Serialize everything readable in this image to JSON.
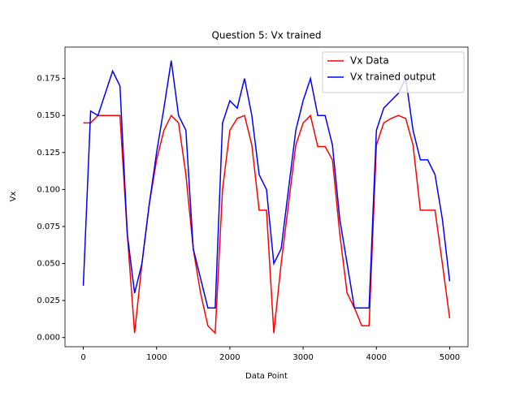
{
  "chart_data": {
    "type": "line",
    "title": "Question 5: Vx trained",
    "x_label": "Data Point",
    "y_label": "Vx",
    "x": [
      0,
      100,
      200,
      300,
      400,
      500,
      600,
      700,
      800,
      900,
      1000,
      1100,
      1200,
      1300,
      1400,
      1500,
      1600,
      1700,
      1800,
      1900,
      2000,
      2100,
      2200,
      2300,
      2400,
      2500,
      2600,
      2700,
      2800,
      2900,
      3000,
      3100,
      3200,
      3300,
      3400,
      3500,
      3600,
      3700,
      3800,
      3900,
      4000,
      4100,
      4200,
      4300,
      4400,
      4500,
      4600,
      4700,
      4800,
      4900,
      5000
    ],
    "series": [
      {
        "name": "Vx Data",
        "color": "#ff0000",
        "values": [
          0.145,
          0.145,
          0.15,
          0.15,
          0.15,
          0.15,
          0.07,
          0.003,
          0.05,
          0.09,
          0.12,
          0.14,
          0.15,
          0.145,
          0.11,
          0.06,
          0.03,
          0.008,
          0.003,
          0.1,
          0.14,
          0.148,
          0.15,
          0.13,
          0.086,
          0.086,
          0.003,
          0.05,
          0.09,
          0.13,
          0.145,
          0.15,
          0.129,
          0.129,
          0.12,
          0.07,
          0.03,
          0.02,
          0.008,
          0.008,
          0.13,
          0.145,
          0.148,
          0.15,
          0.148,
          0.13,
          0.086,
          0.086,
          0.086,
          0.05,
          0.013
        ]
      },
      {
        "name": "Vx trained output",
        "color": "#0000ff",
        "values": [
          0.035,
          0.153,
          0.15,
          0.165,
          0.18,
          0.17,
          0.07,
          0.03,
          0.05,
          0.09,
          0.125,
          0.155,
          0.187,
          0.15,
          0.14,
          0.06,
          0.04,
          0.02,
          0.02,
          0.145,
          0.16,
          0.155,
          0.175,
          0.15,
          0.11,
          0.1,
          0.05,
          0.06,
          0.1,
          0.14,
          0.16,
          0.175,
          0.15,
          0.15,
          0.13,
          0.08,
          0.05,
          0.02,
          0.02,
          0.02,
          0.14,
          0.155,
          0.16,
          0.165,
          0.175,
          0.14,
          0.12,
          0.12,
          0.11,
          0.08,
          0.038
        ]
      }
    ],
    "xlim": [
      -250,
      5250
    ],
    "xticks": [
      0,
      1000,
      2000,
      3000,
      4000,
      5000
    ],
    "ylim": [
      -0.0062,
      0.1962
    ],
    "yticks": [
      {
        "value": 0,
        "label": "0.000"
      },
      {
        "value": 0.025,
        "label": "0.025"
      },
      {
        "value": 0.05,
        "label": "0.050"
      },
      {
        "value": 0.075,
        "label": "0.075"
      },
      {
        "value": 0.1,
        "label": "0.100"
      },
      {
        "value": 0.125,
        "label": "0.125"
      },
      {
        "value": 0.15,
        "label": "0.150"
      },
      {
        "value": 0.175,
        "label": "0.175"
      }
    ],
    "grid": false,
    "legend": "upper right"
  }
}
